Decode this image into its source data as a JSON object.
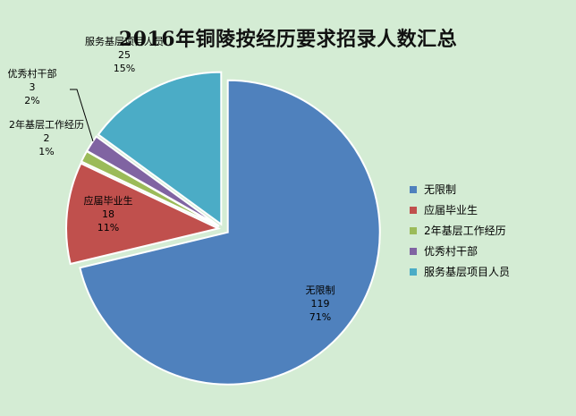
{
  "chart_data": {
    "type": "pie",
    "title": "2016年铜陵按经历要求招录人数汇总",
    "categories": [
      "无限制",
      "应届毕业生",
      "2年基层工作经历",
      "优秀村干部",
      "服务基层项目人员"
    ],
    "values": [
      119,
      18,
      2,
      3,
      25
    ],
    "percents": [
      "71%",
      "11%",
      "1%",
      "2%",
      "15%"
    ],
    "colors": [
      "#4f81bd",
      "#c0504d",
      "#9bbb59",
      "#8064a2",
      "#4bacc6"
    ],
    "exploded": true,
    "legend_position": "right"
  }
}
